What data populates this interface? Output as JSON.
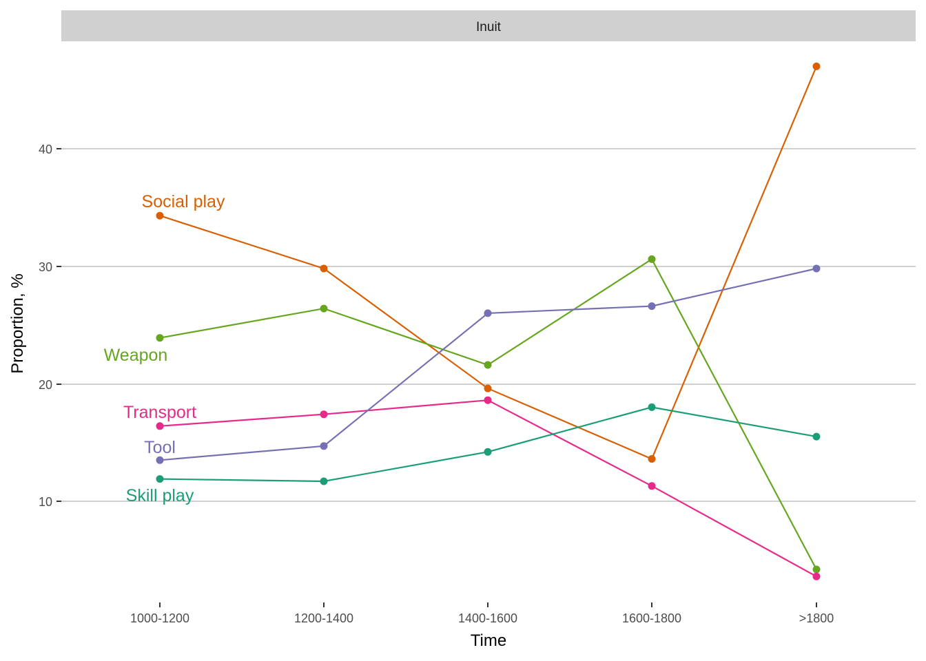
{
  "chart_data": {
    "type": "line",
    "title": "",
    "facet": "Inuit",
    "xlabel": "Time",
    "ylabel": "Proportion, %",
    "categories": [
      "1000-1200",
      "1200-1400",
      "1400-1600",
      "1600-1800",
      ">1800"
    ],
    "y_ticks": [
      10,
      20,
      30,
      40
    ],
    "ylim": [
      1.5,
      48.5
    ],
    "grid": "horizontal major",
    "legend": "direct labels at left end of each line",
    "series": [
      {
        "name": "Social play",
        "color": "#D95F02",
        "values": [
          34.3,
          29.8,
          19.6,
          13.6,
          47.0
        ]
      },
      {
        "name": "Weapon",
        "color": "#66A61E",
        "values": [
          23.9,
          26.4,
          21.6,
          30.6,
          4.2
        ]
      },
      {
        "name": "Transport",
        "color": "#E7298A",
        "values": [
          16.4,
          17.4,
          18.6,
          11.3,
          3.6
        ]
      },
      {
        "name": "Tool",
        "color": "#7570B3",
        "values": [
          13.5,
          14.7,
          26.0,
          26.6,
          29.8
        ]
      },
      {
        "name": "Skill play",
        "color": "#1B9E77",
        "values": [
          11.9,
          11.7,
          14.2,
          18.0,
          15.5
        ]
      }
    ]
  },
  "labels": {
    "strip": "Inuit",
    "x_axis_title": "Time",
    "y_axis_title": "Proportion, %",
    "y_tick_10": "10",
    "y_tick_20": "20",
    "y_tick_30": "30",
    "y_tick_40": "40",
    "x_tick_0": "1000-1200",
    "x_tick_1": "1200-1400",
    "x_tick_2": "1400-1600",
    "x_tick_3": "1600-1800",
    "x_tick_4": ">1800",
    "series_social_play": "Social play",
    "series_weapon": "Weapon",
    "series_transport": "Transport",
    "series_tool": "Tool",
    "series_skill_play": "Skill play"
  }
}
